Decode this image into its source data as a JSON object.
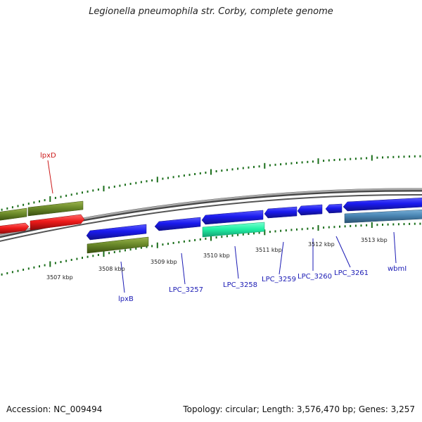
{
  "title": "Legionella pneumophila str. Corby, complete genome",
  "footer": {
    "accession": "Accession: NC_009494",
    "stats": "Topology: circular; Length: 3,576,470 bp; Genes: 3,257"
  },
  "colors": {
    "backbone": "#8a8a8a",
    "tick": "#1a6e1a",
    "gene_blue": "#1a1aee",
    "gene_red": "#ee1a1a",
    "gene_olive": "#6b8a2a",
    "gene_teal": "#22f2a6",
    "gene_steel": "#4a86b4",
    "label_blue": "#1a1ab4",
    "label_red": "#cc1a1a"
  },
  "ticks": [
    {
      "label": "3507 kbp"
    },
    {
      "label": "3508 kbp"
    },
    {
      "label": "3509 kbp"
    },
    {
      "label": "3510 kbp"
    },
    {
      "label": "3511 kbp"
    },
    {
      "label": "3512 kbp"
    },
    {
      "label": "3513 kbp"
    }
  ],
  "genes": [
    {
      "name": "lpxD",
      "label": "lpxD",
      "color": "gene_red"
    },
    {
      "name": "lpxB",
      "label": "lpxB",
      "color": "gene_blue"
    },
    {
      "name": "LPC_3257",
      "label": "LPC_3257",
      "color": "gene_blue"
    },
    {
      "name": "LPC_3258",
      "label": "LPC_3258",
      "color": "gene_blue"
    },
    {
      "name": "LPC_3259",
      "label": "LPC_3259",
      "color": "gene_blue"
    },
    {
      "name": "LPC_3260",
      "label": "LPC_3260",
      "color": "gene_blue"
    },
    {
      "name": "LPC_3261",
      "label": "LPC_3261",
      "color": "gene_blue"
    },
    {
      "name": "wbmI",
      "label": "wbmI",
      "color": "gene_blue"
    }
  ]
}
